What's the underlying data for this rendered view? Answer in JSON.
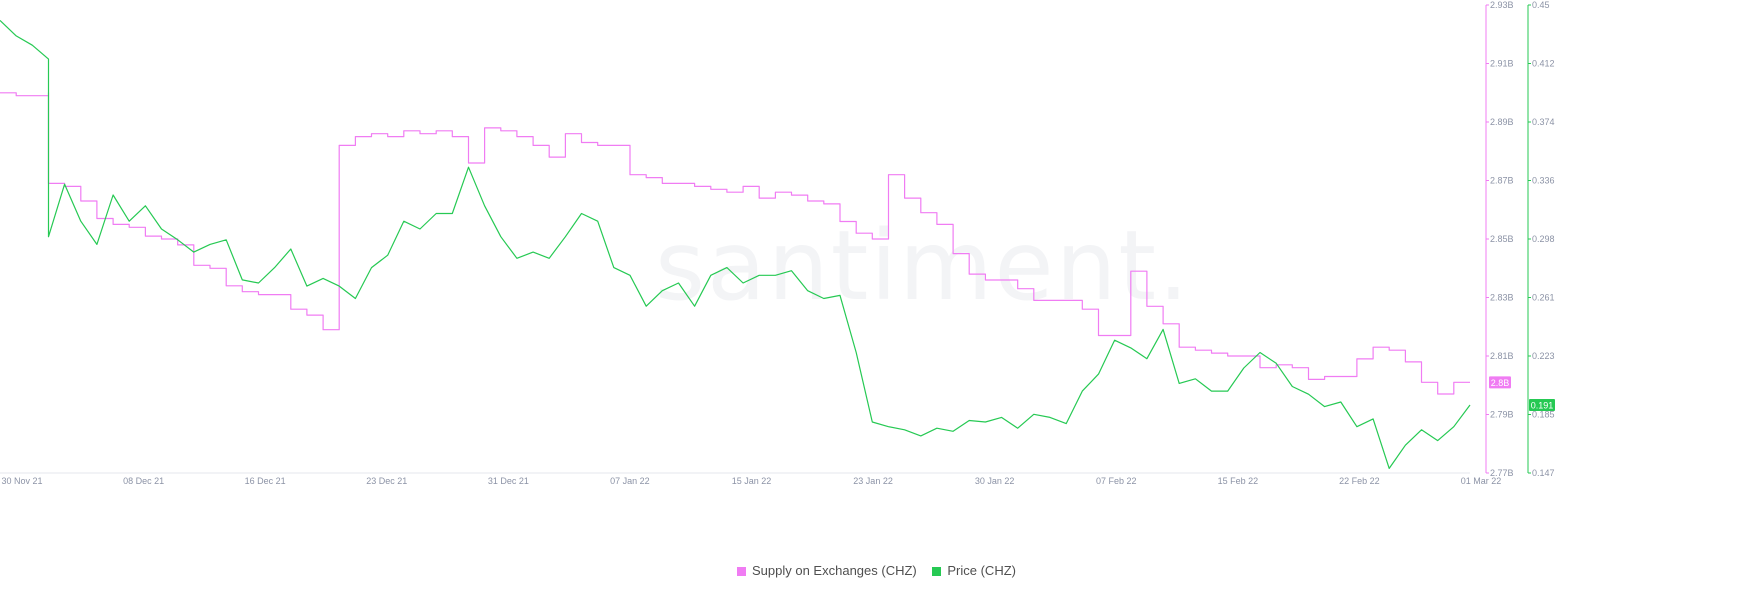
{
  "watermark": "santiment.",
  "legend": {
    "supply_label": "Supply on Exchanges (CHZ)",
    "price_label": "Price (CHZ)"
  },
  "colors": {
    "supply": "#f07cf3",
    "price": "#26c953",
    "axis_text": "#8c93a6",
    "tick": "#e4e7ec"
  },
  "chart_data": {
    "type": "line",
    "x": {
      "domain": [
        "2021-11-30",
        "2022-03-01"
      ],
      "tick_labels": [
        "30 Nov 21",
        "08 Dec 21",
        "16 Dec 21",
        "23 Dec 21",
        "31 Dec 21",
        "07 Jan 22",
        "15 Jan 22",
        "23 Jan 22",
        "30 Jan 22",
        "07 Feb 22",
        "15 Feb 22",
        "22 Feb 22",
        "01 Mar 22"
      ]
    },
    "y_supply": {
      "ylim": [
        2.77,
        2.93
      ],
      "tick_labels": [
        "2.93B",
        "2.91B",
        "2.89B",
        "2.87B",
        "2.85B",
        "2.83B",
        "2.81B",
        "2.79B",
        "2.77B"
      ],
      "last_value_label": "2.8B"
    },
    "y_price": {
      "ylim": [
        0.147,
        0.45
      ],
      "tick_labels": [
        "0.45",
        "0.412",
        "0.374",
        "0.336",
        "0.298",
        "0.261",
        "0.223",
        "0.185",
        "0.147"
      ],
      "last_value_label": "0.191"
    },
    "series": [
      {
        "name": "Supply on Exchanges (CHZ)",
        "axis": "y_supply",
        "step": true,
        "points": [
          [
            "2021-11-30",
            2.9
          ],
          [
            "2021-12-01",
            2.899
          ],
          [
            "2021-12-02",
            2.899
          ],
          [
            "2021-12-03",
            2.9
          ],
          [
            "2021-12-03",
            2.869
          ],
          [
            "2021-12-04",
            2.868
          ],
          [
            "2021-12-05",
            2.863
          ],
          [
            "2021-12-06",
            2.857
          ],
          [
            "2021-12-07",
            2.855
          ],
          [
            "2021-12-08",
            2.854
          ],
          [
            "2021-12-09",
            2.851
          ],
          [
            "2021-12-10",
            2.85
          ],
          [
            "2021-12-11",
            2.848
          ],
          [
            "2021-12-12",
            2.841
          ],
          [
            "2021-12-13",
            2.84
          ],
          [
            "2021-12-14",
            2.834
          ],
          [
            "2021-12-15",
            2.832
          ],
          [
            "2021-12-16",
            2.831
          ],
          [
            "2021-12-17",
            2.831
          ],
          [
            "2021-12-18",
            2.826
          ],
          [
            "2021-12-19",
            2.824
          ],
          [
            "2021-12-20",
            2.819
          ],
          [
            "2021-12-21",
            2.819
          ],
          [
            "2021-12-21",
            2.882
          ],
          [
            "2021-12-22",
            2.885
          ],
          [
            "2021-12-23",
            2.886
          ],
          [
            "2021-12-24",
            2.885
          ],
          [
            "2021-12-25",
            2.887
          ],
          [
            "2021-12-26",
            2.886
          ],
          [
            "2021-12-27",
            2.887
          ],
          [
            "2021-12-28",
            2.885
          ],
          [
            "2021-12-29",
            2.876
          ],
          [
            "2021-12-30",
            2.888
          ],
          [
            "2021-12-31",
            2.887
          ],
          [
            "2022-01-01",
            2.885
          ],
          [
            "2022-01-02",
            2.882
          ],
          [
            "2022-01-03",
            2.878
          ],
          [
            "2022-01-04",
            2.886
          ],
          [
            "2022-01-05",
            2.883
          ],
          [
            "2022-01-06",
            2.882
          ],
          [
            "2022-01-07",
            2.882
          ],
          [
            "2022-01-08",
            2.872
          ],
          [
            "2022-01-09",
            2.871
          ],
          [
            "2022-01-10",
            2.869
          ],
          [
            "2022-01-11",
            2.869
          ],
          [
            "2022-01-12",
            2.868
          ],
          [
            "2022-01-13",
            2.867
          ],
          [
            "2022-01-14",
            2.866
          ],
          [
            "2022-01-15",
            2.868
          ],
          [
            "2022-01-16",
            2.864
          ],
          [
            "2022-01-17",
            2.866
          ],
          [
            "2022-01-18",
            2.865
          ],
          [
            "2022-01-19",
            2.863
          ],
          [
            "2022-01-20",
            2.862
          ],
          [
            "2022-01-21",
            2.856
          ],
          [
            "2022-01-22",
            2.852
          ],
          [
            "2022-01-23",
            2.85
          ],
          [
            "2022-01-24",
            2.872
          ],
          [
            "2022-01-25",
            2.864
          ],
          [
            "2022-01-26",
            2.859
          ],
          [
            "2022-01-27",
            2.855
          ],
          [
            "2022-01-28",
            2.845
          ],
          [
            "2022-01-29",
            2.838
          ],
          [
            "2022-01-30",
            2.836
          ],
          [
            "2022-01-31",
            2.836
          ],
          [
            "2022-02-01",
            2.833
          ],
          [
            "2022-02-02",
            2.829
          ],
          [
            "2022-02-03",
            2.829
          ],
          [
            "2022-02-04",
            2.829
          ],
          [
            "2022-02-05",
            2.826
          ],
          [
            "2022-02-06",
            2.817
          ],
          [
            "2022-02-07",
            2.817
          ],
          [
            "2022-02-08",
            2.839
          ],
          [
            "2022-02-09",
            2.827
          ],
          [
            "2022-02-10",
            2.821
          ],
          [
            "2022-02-11",
            2.813
          ],
          [
            "2022-02-12",
            2.812
          ],
          [
            "2022-02-13",
            2.811
          ],
          [
            "2022-02-14",
            2.81
          ],
          [
            "2022-02-15",
            2.81
          ],
          [
            "2022-02-16",
            2.806
          ],
          [
            "2022-02-17",
            2.807
          ],
          [
            "2022-02-18",
            2.806
          ],
          [
            "2022-02-19",
            2.802
          ],
          [
            "2022-02-20",
            2.803
          ],
          [
            "2022-02-21",
            2.803
          ],
          [
            "2022-02-22",
            2.809
          ],
          [
            "2022-02-23",
            2.813
          ],
          [
            "2022-02-24",
            2.812
          ],
          [
            "2022-02-25",
            2.808
          ],
          [
            "2022-02-26",
            2.801
          ],
          [
            "2022-02-27",
            2.797
          ],
          [
            "2022-02-28",
            2.801
          ],
          [
            "2022-03-01",
            2.801
          ]
        ]
      },
      {
        "name": "Price (CHZ)",
        "axis": "y_price",
        "step": false,
        "points": [
          [
            "2021-11-30",
            0.44
          ],
          [
            "2021-12-01",
            0.43
          ],
          [
            "2021-12-02",
            0.424
          ],
          [
            "2021-12-03",
            0.415
          ],
          [
            "2021-12-03",
            0.3
          ],
          [
            "2021-12-04",
            0.334
          ],
          [
            "2021-12-05",
            0.31
          ],
          [
            "2021-12-06",
            0.295
          ],
          [
            "2021-12-07",
            0.327
          ],
          [
            "2021-12-08",
            0.31
          ],
          [
            "2021-12-09",
            0.32
          ],
          [
            "2021-12-10",
            0.305
          ],
          [
            "2021-12-11",
            0.298
          ],
          [
            "2021-12-12",
            0.29
          ],
          [
            "2021-12-13",
            0.295
          ],
          [
            "2021-12-14",
            0.298
          ],
          [
            "2021-12-15",
            0.272
          ],
          [
            "2021-12-16",
            0.27
          ],
          [
            "2021-12-17",
            0.28
          ],
          [
            "2021-12-18",
            0.292
          ],
          [
            "2021-12-19",
            0.268
          ],
          [
            "2021-12-20",
            0.273
          ],
          [
            "2021-12-21",
            0.268
          ],
          [
            "2021-12-22",
            0.26
          ],
          [
            "2021-12-23",
            0.28
          ],
          [
            "2021-12-24",
            0.288
          ],
          [
            "2021-12-25",
            0.31
          ],
          [
            "2021-12-26",
            0.305
          ],
          [
            "2021-12-27",
            0.315
          ],
          [
            "2021-12-28",
            0.315
          ],
          [
            "2021-12-29",
            0.345
          ],
          [
            "2021-12-30",
            0.32
          ],
          [
            "2021-12-31",
            0.3
          ],
          [
            "2022-01-01",
            0.286
          ],
          [
            "2022-01-02",
            0.29
          ],
          [
            "2022-01-03",
            0.286
          ],
          [
            "2022-01-04",
            0.3
          ],
          [
            "2022-01-05",
            0.315
          ],
          [
            "2022-01-06",
            0.31
          ],
          [
            "2022-01-07",
            0.28
          ],
          [
            "2022-01-08",
            0.275
          ],
          [
            "2022-01-09",
            0.255
          ],
          [
            "2022-01-10",
            0.265
          ],
          [
            "2022-01-11",
            0.27
          ],
          [
            "2022-01-12",
            0.255
          ],
          [
            "2022-01-13",
            0.275
          ],
          [
            "2022-01-14",
            0.28
          ],
          [
            "2022-01-15",
            0.27
          ],
          [
            "2022-01-16",
            0.275
          ],
          [
            "2022-01-17",
            0.275
          ],
          [
            "2022-01-18",
            0.278
          ],
          [
            "2022-01-19",
            0.265
          ],
          [
            "2022-01-20",
            0.26
          ],
          [
            "2022-01-21",
            0.262
          ],
          [
            "2022-01-22",
            0.225
          ],
          [
            "2022-01-23",
            0.18
          ],
          [
            "2022-01-24",
            0.177
          ],
          [
            "2022-01-25",
            0.175
          ],
          [
            "2022-01-26",
            0.171
          ],
          [
            "2022-01-27",
            0.176
          ],
          [
            "2022-01-28",
            0.174
          ],
          [
            "2022-01-29",
            0.181
          ],
          [
            "2022-01-30",
            0.18
          ],
          [
            "2022-01-31",
            0.183
          ],
          [
            "2022-02-01",
            0.176
          ],
          [
            "2022-02-02",
            0.185
          ],
          [
            "2022-02-03",
            0.183
          ],
          [
            "2022-02-04",
            0.179
          ],
          [
            "2022-02-05",
            0.2
          ],
          [
            "2022-02-06",
            0.211
          ],
          [
            "2022-02-07",
            0.233
          ],
          [
            "2022-02-08",
            0.228
          ],
          [
            "2022-02-09",
            0.221
          ],
          [
            "2022-02-10",
            0.24
          ],
          [
            "2022-02-11",
            0.205
          ],
          [
            "2022-02-12",
            0.208
          ],
          [
            "2022-02-13",
            0.2
          ],
          [
            "2022-02-14",
            0.2
          ],
          [
            "2022-02-15",
            0.215
          ],
          [
            "2022-02-16",
            0.225
          ],
          [
            "2022-02-17",
            0.218
          ],
          [
            "2022-02-18",
            0.203
          ],
          [
            "2022-02-19",
            0.198
          ],
          [
            "2022-02-20",
            0.19
          ],
          [
            "2022-02-21",
            0.193
          ],
          [
            "2022-02-22",
            0.177
          ],
          [
            "2022-02-23",
            0.182
          ],
          [
            "2022-02-24",
            0.15
          ],
          [
            "2022-02-25",
            0.165
          ],
          [
            "2022-02-26",
            0.175
          ],
          [
            "2022-02-27",
            0.168
          ],
          [
            "2022-02-28",
            0.177
          ],
          [
            "2022-03-01",
            0.191
          ]
        ]
      }
    ]
  }
}
